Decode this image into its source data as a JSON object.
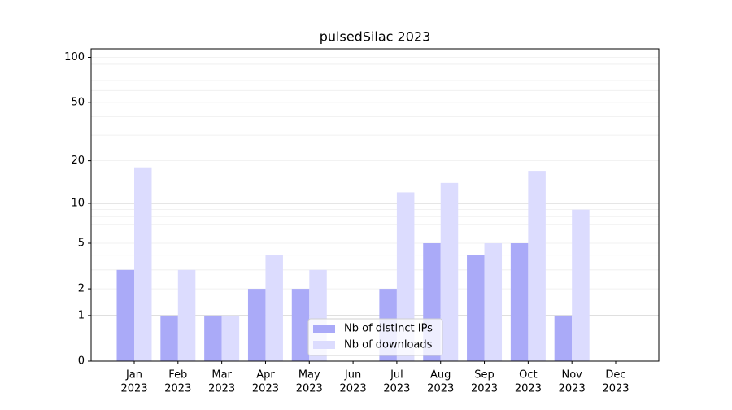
{
  "chart_data": {
    "type": "bar",
    "title": "pulsedSilac 2023",
    "scale": "log1p",
    "categories": [
      [
        "Jan",
        "2023"
      ],
      [
        "Feb",
        "2023"
      ],
      [
        "Mar",
        "2023"
      ],
      [
        "Apr",
        "2023"
      ],
      [
        "May",
        "2023"
      ],
      [
        "Jun",
        "2023"
      ],
      [
        "Jul",
        "2023"
      ],
      [
        "Aug",
        "2023"
      ],
      [
        "Sep",
        "2023"
      ],
      [
        "Oct",
        "2023"
      ],
      [
        "Nov",
        "2023"
      ],
      [
        "Dec",
        "2023"
      ]
    ],
    "series": [
      {
        "name": "Nb of distinct IPs",
        "color": "#aaaaf8",
        "values": [
          3,
          1,
          1,
          2,
          2,
          0,
          2,
          5,
          4,
          5,
          1,
          0
        ]
      },
      {
        "name": "Nb of downloads",
        "color": "#dcdcfe",
        "values": [
          18,
          3,
          1,
          4,
          3,
          0,
          12,
          14,
          5,
          17,
          9,
          0
        ]
      }
    ],
    "ylim": [
      0,
      114
    ],
    "yticks": [
      0,
      1,
      2,
      5,
      10,
      20,
      50,
      100
    ],
    "major_gridlines": [
      1,
      10
    ],
    "minor_gridlines": [
      2,
      3,
      4,
      5,
      6,
      7,
      8,
      9,
      20,
      30,
      40,
      50,
      60,
      70,
      80,
      90,
      100
    ],
    "legend": "lower center"
  }
}
